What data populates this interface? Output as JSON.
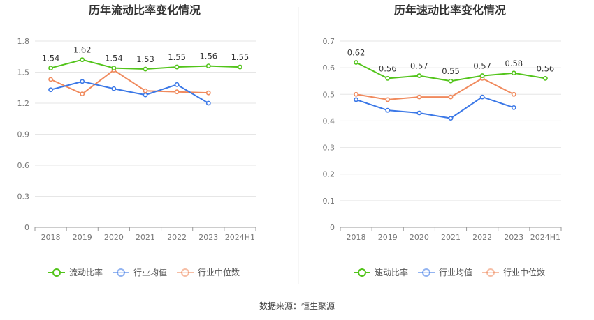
{
  "source": "数据来源：恒生聚源",
  "colors": {
    "main": "#52c41a",
    "industry_avg": "#3b78e7",
    "industry_median": "#f08a5d"
  },
  "chart_data": [
    {
      "type": "line",
      "title": "历年流动比率变化情况",
      "categories": [
        "2018",
        "2019",
        "2020",
        "2021",
        "2022",
        "2023",
        "2024H1"
      ],
      "ylim": [
        0,
        1.8
      ],
      "yticks": [
        "0",
        "0.3",
        "0.6",
        "0.9",
        "1.2",
        "1.5",
        "1.8"
      ],
      "grid": true,
      "legend_position": "bottom",
      "series": [
        {
          "name": "流动比率",
          "key": "main",
          "labeled": true,
          "values": [
            1.54,
            1.62,
            1.54,
            1.53,
            1.55,
            1.56,
            1.55
          ],
          "labels": [
            "1.54",
            "1.62",
            "1.54",
            "1.53",
            "1.55",
            "1.56",
            "1.55"
          ]
        },
        {
          "name": "行业均值",
          "key": "industry_avg",
          "labeled": false,
          "values": [
            1.33,
            1.41,
            1.34,
            1.28,
            1.38,
            1.2,
            null
          ]
        },
        {
          "name": "行业中位数",
          "key": "industry_median",
          "labeled": false,
          "values": [
            1.43,
            1.29,
            1.52,
            1.32,
            1.31,
            1.3,
            null
          ]
        }
      ]
    },
    {
      "type": "line",
      "title": "历年速动比率变化情况",
      "categories": [
        "2018",
        "2019",
        "2020",
        "2021",
        "2022",
        "2023",
        "2024H1"
      ],
      "ylim": [
        0,
        0.7
      ],
      "yticks": [
        "0",
        "0.1",
        "0.2",
        "0.3",
        "0.4",
        "0.5",
        "0.6",
        "0.7"
      ],
      "grid": true,
      "legend_position": "bottom",
      "series": [
        {
          "name": "速动比率",
          "key": "main",
          "labeled": true,
          "values": [
            0.62,
            0.56,
            0.57,
            0.55,
            0.57,
            0.58,
            0.56
          ],
          "labels": [
            "0.62",
            "0.56",
            "0.57",
            "0.55",
            "0.57",
            "0.58",
            "0.56"
          ]
        },
        {
          "name": "行业均值",
          "key": "industry_avg",
          "labeled": false,
          "values": [
            0.48,
            0.44,
            0.43,
            0.41,
            0.49,
            0.45,
            null
          ]
        },
        {
          "name": "行业中位数",
          "key": "industry_median",
          "labeled": false,
          "values": [
            0.5,
            0.48,
            0.49,
            0.49,
            0.56,
            0.5,
            null
          ]
        }
      ]
    }
  ]
}
